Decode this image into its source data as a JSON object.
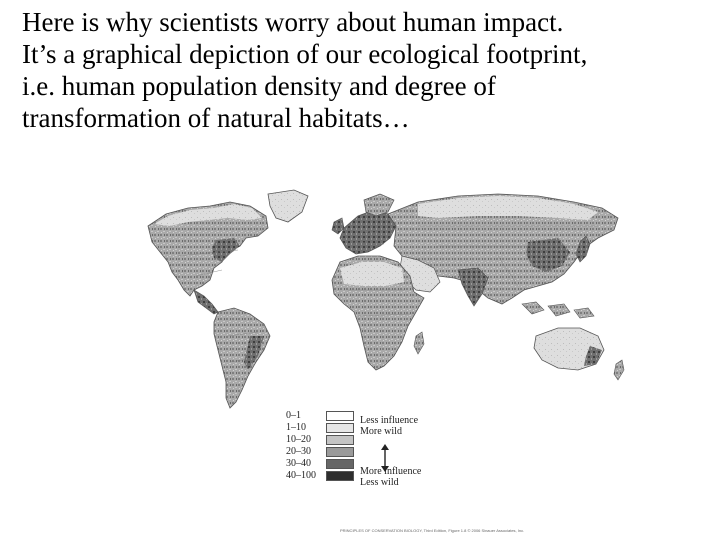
{
  "slide": {
    "text_lines": [
      "Here is why scientists worry about human impact.",
      "It’s a graphical depiction of our ecological footprint,",
      "i.e. human population density and degree of",
      "transformation of natural habitats…"
    ]
  },
  "legend": {
    "ranges": [
      "0–1",
      "1–10",
      "10–20",
      "20–30",
      "30–40",
      "40–100"
    ],
    "swatch_colors": [
      "#ffffff",
      "#e6e6e6",
      "#c4c4c4",
      "#9a9a9a",
      "#666666",
      "#2e2e2e"
    ],
    "less_influence": "Less influence",
    "more_wild": "More wild",
    "more_influence": "More influence",
    "less_wild": "Less wild"
  },
  "map": {
    "land_color": "#a9a9a9",
    "outline_color": "#555555",
    "border_color": "#7a7a7a",
    "high_impact_color": "#4a4a4a",
    "low_impact_color": "#e4e4e4"
  },
  "credit": {
    "text": "PRINCIPLES OF CONSERVATION BIOLOGY, Third Edition, Figure 1.8 © 2006 Sinauer Associates, Inc."
  }
}
